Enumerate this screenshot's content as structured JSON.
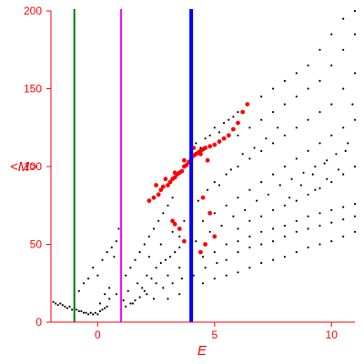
{
  "chart_data": {
    "type": "scatter",
    "xlabel": "E",
    "ylabel": "<M>",
    "xlim": [
      -2,
      11
    ],
    "ylim": [
      0,
      200
    ],
    "x_ticks": [
      0,
      5,
      10
    ],
    "y_ticks": [
      0,
      50,
      100,
      150,
      200
    ],
    "x_tick_labels": [
      "0",
      "5",
      "10"
    ],
    "y_tick_labels": [
      "0",
      "50",
      "100",
      "150",
      "200"
    ],
    "grid": false,
    "vertical_lines": [
      {
        "x": -1.0,
        "color": "#007a00"
      },
      {
        "x": 1.0,
        "color": "#ff00ff"
      },
      {
        "x": 4.0,
        "color": "#0000ff"
      }
    ],
    "series": [
      {
        "color": "#000000",
        "points": [
          [
            -1.9,
            13
          ],
          [
            -1.8,
            12
          ],
          [
            -1.7,
            11
          ],
          [
            -1.6,
            12
          ],
          [
            -1.5,
            11
          ],
          [
            -1.4,
            10
          ],
          [
            -1.3,
            9
          ],
          [
            -1.2,
            10
          ],
          [
            -1.1,
            8
          ],
          [
            -1.0,
            9
          ],
          [
            -0.9,
            8
          ],
          [
            -0.8,
            7
          ],
          [
            -0.7,
            7
          ],
          [
            -0.6,
            6
          ],
          [
            -0.5,
            6
          ],
          [
            -0.4,
            5
          ],
          [
            -0.3,
            6
          ],
          [
            -0.2,
            5
          ],
          [
            -0.1,
            6
          ],
          [
            0.0,
            5
          ],
          [
            0.1,
            7
          ],
          [
            0.2,
            8
          ],
          [
            0.3,
            9
          ],
          [
            0.4,
            10
          ],
          [
            -0.8,
            20
          ],
          [
            -0.6,
            25
          ],
          [
            -0.4,
            28
          ],
          [
            -0.2,
            35
          ],
          [
            0.0,
            30
          ],
          [
            0.2,
            40
          ],
          [
            0.4,
            45
          ],
          [
            0.6,
            48
          ],
          [
            0.8,
            52
          ],
          [
            1.0,
            55
          ],
          [
            0.9,
            60
          ],
          [
            0.7,
            42
          ],
          [
            0.5,
            22
          ],
          [
            0.3,
            18
          ],
          [
            0.1,
            12
          ],
          [
            0.5,
            15
          ],
          [
            0.8,
            18
          ],
          [
            1.1,
            14
          ],
          [
            1.3,
            20
          ],
          [
            1.5,
            12
          ],
          [
            1.7,
            25
          ],
          [
            1.9,
            22
          ],
          [
            2.1,
            30
          ],
          [
            2.3,
            28
          ],
          [
            2.5,
            35
          ],
          [
            2.7,
            38
          ],
          [
            2.9,
            40
          ],
          [
            3.1,
            42
          ],
          [
            3.3,
            45
          ],
          [
            3.5,
            48
          ],
          [
            1.2,
            30
          ],
          [
            1.4,
            35
          ],
          [
            1.6,
            40
          ],
          [
            1.8,
            45
          ],
          [
            2.0,
            50
          ],
          [
            2.2,
            55
          ],
          [
            2.4,
            60
          ],
          [
            2.6,
            65
          ],
          [
            2.8,
            70
          ],
          [
            3.0,
            75
          ],
          [
            3.2,
            80
          ],
          [
            2.0,
            20
          ],
          [
            2.5,
            25
          ],
          [
            3.0,
            30
          ],
          [
            3.5,
            35
          ],
          [
            4.0,
            40
          ],
          [
            4.5,
            42
          ],
          [
            5.0,
            45
          ],
          [
            5.5,
            50
          ],
          [
            6.0,
            52
          ],
          [
            6.5,
            55
          ],
          [
            7.0,
            58
          ],
          [
            7.5,
            60
          ],
          [
            8.0,
            62
          ],
          [
            8.5,
            65
          ],
          [
            9.0,
            68
          ],
          [
            9.5,
            70
          ],
          [
            10.0,
            72
          ],
          [
            10.5,
            74
          ],
          [
            11.0,
            76
          ],
          [
            3.0,
            15
          ],
          [
            3.5,
            18
          ],
          [
            4.0,
            20
          ],
          [
            4.5,
            25
          ],
          [
            5.0,
            28
          ],
          [
            5.5,
            30
          ],
          [
            6.0,
            32
          ],
          [
            6.5,
            35
          ],
          [
            7.0,
            38
          ],
          [
            7.5,
            40
          ],
          [
            8.0,
            42
          ],
          [
            8.5,
            45
          ],
          [
            9.0,
            48
          ],
          [
            9.5,
            50
          ],
          [
            10.0,
            52
          ],
          [
            10.5,
            55
          ],
          [
            11.0,
            58
          ],
          [
            4.0,
            60
          ],
          [
            4.5,
            65
          ],
          [
            5.0,
            70
          ],
          [
            5.5,
            75
          ],
          [
            6.0,
            80
          ],
          [
            6.5,
            85
          ],
          [
            7.0,
            90
          ],
          [
            7.5,
            95
          ],
          [
            8.0,
            100
          ],
          [
            8.5,
            105
          ],
          [
            9.0,
            110
          ],
          [
            9.5,
            115
          ],
          [
            10.0,
            120
          ],
          [
            10.5,
            125
          ],
          [
            11.0,
            130
          ],
          [
            5.0,
            90
          ],
          [
            5.5,
            95
          ],
          [
            6.0,
            100
          ],
          [
            6.5,
            105
          ],
          [
            7.0,
            110
          ],
          [
            7.5,
            115
          ],
          [
            8.0,
            120
          ],
          [
            8.5,
            125
          ],
          [
            9.0,
            130
          ],
          [
            9.5,
            135
          ],
          [
            10.0,
            140
          ],
          [
            10.5,
            150
          ],
          [
            11.0,
            160
          ],
          [
            6.0,
            120
          ],
          [
            6.5,
            125
          ],
          [
            7.0,
            130
          ],
          [
            7.5,
            135
          ],
          [
            8.0,
            140
          ],
          [
            8.5,
            145
          ],
          [
            9.0,
            150
          ],
          [
            9.5,
            155
          ],
          [
            10.0,
            165
          ],
          [
            10.5,
            175
          ],
          [
            11.0,
            185
          ],
          [
            7.0,
            145
          ],
          [
            7.5,
            150
          ],
          [
            8.0,
            155
          ],
          [
            8.5,
            160
          ],
          [
            9.0,
            165
          ],
          [
            9.5,
            175
          ],
          [
            10.0,
            185
          ],
          [
            10.5,
            195
          ],
          [
            11.0,
            200
          ],
          [
            4.0,
            110
          ],
          [
            4.2,
            115
          ],
          [
            4.4,
            112
          ],
          [
            4.6,
            118
          ],
          [
            4.8,
            120
          ],
          [
            5.0,
            125
          ],
          [
            5.2,
            122
          ],
          [
            5.4,
            128
          ],
          [
            5.6,
            130
          ],
          [
            5.8,
            132
          ],
          [
            6.0,
            135
          ],
          [
            6.0,
            60
          ],
          [
            6.5,
            65
          ],
          [
            7.0,
            68
          ],
          [
            7.5,
            72
          ],
          [
            8.0,
            75
          ],
          [
            8.5,
            78
          ],
          [
            9.0,
            82
          ],
          [
            9.5,
            86
          ],
          [
            10.0,
            90
          ],
          [
            10.5,
            95
          ],
          [
            11.0,
            100
          ],
          [
            5.5,
            40
          ],
          [
            6.0,
            45
          ],
          [
            6.5,
            48
          ],
          [
            7.0,
            50
          ],
          [
            7.5,
            52
          ],
          [
            8.0,
            55
          ],
          [
            8.5,
            58
          ],
          [
            9.0,
            60
          ],
          [
            9.5,
            62
          ],
          [
            10.0,
            64
          ],
          [
            10.5,
            66
          ],
          [
            11.0,
            68
          ],
          [
            3.5,
            55
          ],
          [
            4.2,
            52
          ],
          [
            4.8,
            58
          ],
          [
            5.3,
            62
          ],
          [
            5.8,
            68
          ],
          [
            6.3,
            72
          ],
          [
            6.8,
            78
          ],
          [
            7.3,
            82
          ],
          [
            7.8,
            88
          ],
          [
            8.3,
            92
          ],
          [
            8.8,
            96
          ],
          [
            9.3,
            100
          ],
          [
            9.8,
            104
          ],
          [
            2.2,
            42
          ],
          [
            2.7,
            50
          ],
          [
            3.2,
            58
          ],
          [
            3.7,
            65
          ],
          [
            4.3,
            78
          ],
          [
            4.7,
            85
          ],
          [
            5.2,
            88
          ],
          [
            5.7,
            98
          ],
          [
            6.2,
            108
          ],
          [
            6.7,
            112
          ],
          [
            7.2,
            118
          ],
          [
            7.7,
            125
          ],
          [
            8.2,
            80
          ],
          [
            8.7,
            88
          ],
          [
            9.2,
            95
          ],
          [
            9.7,
            102
          ],
          [
            10.2,
            108
          ],
          [
            10.7,
            115
          ],
          [
            10.9,
            140
          ],
          [
            10.6,
            110
          ],
          [
            10.3,
            98
          ],
          [
            9.8,
            92
          ],
          [
            9.3,
            85
          ],
          [
            1.0,
            8
          ],
          [
            1.2,
            10
          ],
          [
            1.4,
            12
          ],
          [
            1.6,
            14
          ],
          [
            1.8,
            16
          ],
          [
            2.1,
            18
          ],
          [
            2.4,
            15
          ],
          [
            2.8,
            22
          ],
          [
            3.2,
            25
          ],
          [
            3.6,
            28
          ],
          [
            4.1,
            30
          ],
          [
            4.6,
            35
          ],
          [
            5.1,
            38
          ]
        ]
      },
      {
        "color": "#ff0000",
        "points": [
          [
            2.2,
            78
          ],
          [
            2.4,
            80
          ],
          [
            2.6,
            82
          ],
          [
            2.7,
            85
          ],
          [
            2.8,
            87
          ],
          [
            3.0,
            88
          ],
          [
            3.1,
            90
          ],
          [
            3.2,
            92
          ],
          [
            3.3,
            93
          ],
          [
            3.4,
            95
          ],
          [
            3.5,
            96
          ],
          [
            3.6,
            97
          ],
          [
            3.7,
            100
          ],
          [
            3.8,
            101
          ],
          [
            3.9,
            103
          ],
          [
            4.0,
            105
          ],
          [
            4.1,
            107
          ],
          [
            4.2,
            108
          ],
          [
            4.3,
            109
          ],
          [
            4.4,
            110
          ],
          [
            4.5,
            111
          ],
          [
            4.6,
            112
          ],
          [
            4.8,
            113
          ],
          [
            5.0,
            114
          ],
          [
            5.2,
            116
          ],
          [
            5.4,
            118
          ],
          [
            5.6,
            120
          ],
          [
            5.8,
            124
          ],
          [
            6.0,
            128
          ],
          [
            6.2,
            135
          ],
          [
            6.4,
            140
          ],
          [
            2.5,
            88
          ],
          [
            2.9,
            92
          ],
          [
            3.3,
            96
          ],
          [
            3.7,
            104
          ],
          [
            4.1,
            112
          ],
          [
            4.4,
            108
          ],
          [
            4.7,
            104
          ],
          [
            3.2,
            65
          ],
          [
            3.3,
            63
          ],
          [
            3.5,
            60
          ],
          [
            4.5,
            80
          ],
          [
            4.8,
            70
          ],
          [
            5.0,
            55
          ],
          [
            4.6,
            50
          ],
          [
            4.4,
            45
          ],
          [
            3.7,
            52
          ]
        ]
      }
    ]
  }
}
